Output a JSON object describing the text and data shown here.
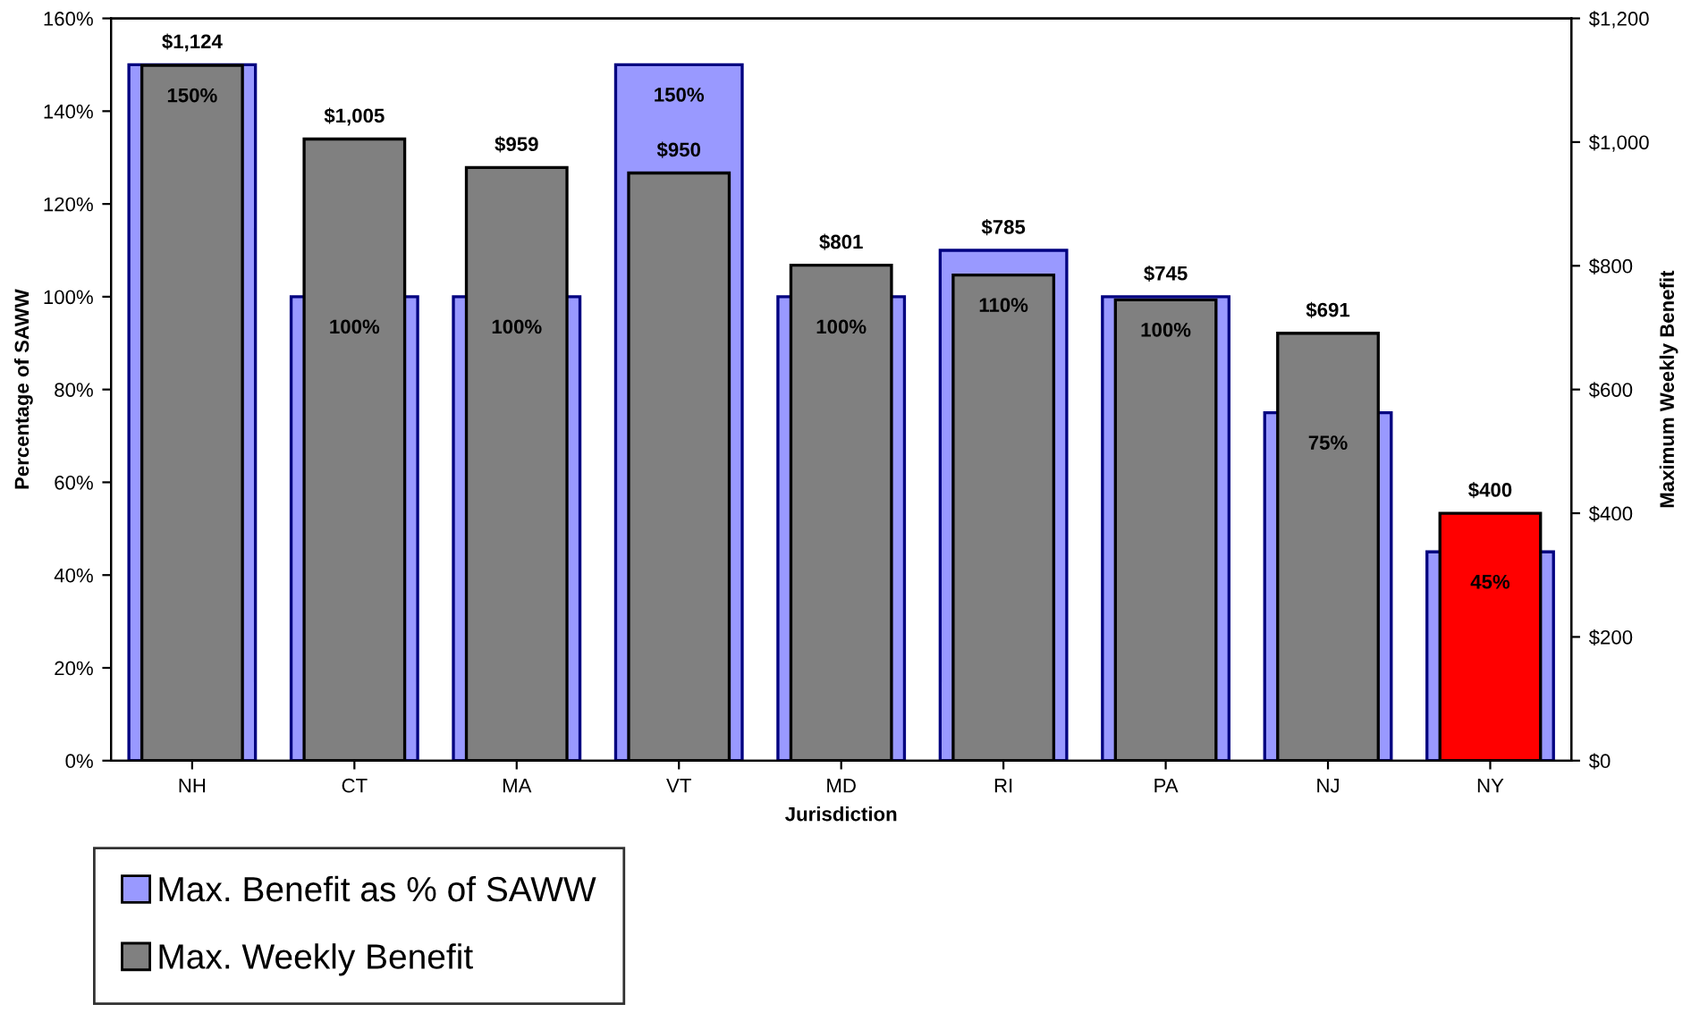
{
  "chart_data": {
    "type": "bar",
    "xlabel": "Jurisdiction",
    "ylabel": "Percentage of SAWW",
    "y2label": "Maximum Weekly Benefit",
    "categories": [
      "NH",
      "CT",
      "MA",
      "VT",
      "MD",
      "RI",
      "PA",
      "NJ",
      "NY"
    ],
    "series": [
      {
        "name": "Max. Benefit as % of SAWW",
        "color": "#9999ff",
        "values": [
          150,
          100,
          100,
          150,
          100,
          110,
          100,
          75,
          45
        ],
        "value_labels": [
          "150%",
          "100%",
          "100%",
          "150%",
          "100%",
          "110%",
          "100%",
          "75%",
          "45%"
        ]
      },
      {
        "name": "Max. Weekly Benefit",
        "axis": "y2",
        "color": "#808080",
        "colors": [
          "#808080",
          "#808080",
          "#808080",
          "#808080",
          "#808080",
          "#808080",
          "#808080",
          "#808080",
          "#ff0000"
        ],
        "values": [
          1124,
          1005,
          959,
          950,
          801,
          785,
          745,
          691,
          400
        ],
        "value_labels": [
          "$1,124",
          "$1,005",
          "$959",
          "$950",
          "$801",
          "$785",
          "$745",
          "$691",
          "$400"
        ]
      }
    ],
    "ylim": [
      0,
      160
    ],
    "yticks": [
      {
        "value": 0,
        "label": "0%"
      },
      {
        "value": 20,
        "label": "20%"
      },
      {
        "value": 40,
        "label": "40%"
      },
      {
        "value": 60,
        "label": "60%"
      },
      {
        "value": 80,
        "label": "80%"
      },
      {
        "value": 100,
        "label": "100%"
      },
      {
        "value": 120,
        "label": "120%"
      },
      {
        "value": 140,
        "label": "140%"
      },
      {
        "value": 160,
        "label": "160%"
      }
    ],
    "y2lim": [
      0,
      1200
    ],
    "y2ticks": [
      {
        "value": 0,
        "label": "$0"
      },
      {
        "value": 200,
        "label": "$200"
      },
      {
        "value": 400,
        "label": "$400"
      },
      {
        "value": 600,
        "label": "$600"
      },
      {
        "value": 800,
        "label": "$800"
      },
      {
        "value": 1000,
        "label": "$1,000"
      },
      {
        "value": 1200,
        "label": "$1,200"
      }
    ],
    "grid": false,
    "legend": "bottom"
  }
}
